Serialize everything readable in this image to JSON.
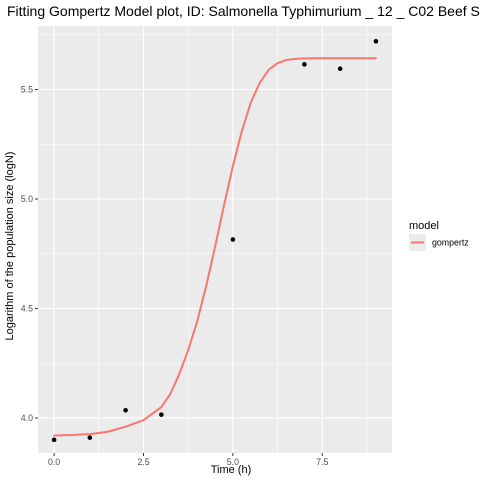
{
  "chart_data": {
    "type": "scatter",
    "title": "Fitting Gompertz Model plot, ID: Salmonella Typhimurium _ 12 _ C02 Beef S",
    "xlabel": "Time (h)",
    "ylabel": "Logarithm of the population size (logN)",
    "xlim": [
      -0.45,
      9.45
    ],
    "ylim": [
      3.84,
      5.79
    ],
    "x_ticks": [
      0,
      2.5,
      5,
      7.5
    ],
    "x_tick_labels": [
      "0.0",
      "2.5",
      "5.0",
      "7.5"
    ],
    "y_ticks": [
      4.0,
      4.5,
      5.0,
      5.5
    ],
    "y_tick_labels": [
      "4.0",
      "4.5",
      "5.0",
      "5.5"
    ],
    "grid": true,
    "background": "#ebebeb",
    "legend": {
      "title": "model",
      "placement": "right",
      "entries": [
        {
          "name": "gompertz",
          "color": "#f8766d"
        }
      ]
    },
    "points": {
      "x": [
        0,
        1,
        2,
        3,
        5,
        7,
        8,
        9
      ],
      "y": [
        3.9,
        3.91,
        4.035,
        4.015,
        4.815,
        5.615,
        5.595,
        5.72
      ],
      "color": "#000000"
    },
    "series": [
      {
        "name": "gompertz",
        "color": "#f8766d",
        "x": [
          0,
          0.5,
          1,
          1.5,
          2,
          2.5,
          3,
          3.25,
          3.5,
          3.75,
          4,
          4.25,
          4.5,
          4.75,
          5,
          5.25,
          5.5,
          5.75,
          6,
          6.25,
          6.5,
          6.75,
          7,
          7.5,
          8,
          8.5,
          9
        ],
        "y": [
          3.92,
          3.922,
          3.926,
          3.937,
          3.96,
          3.99,
          4.05,
          4.11,
          4.2,
          4.31,
          4.44,
          4.6,
          4.78,
          4.97,
          5.15,
          5.31,
          5.44,
          5.53,
          5.59,
          5.62,
          5.635,
          5.64,
          5.642,
          5.643,
          5.643,
          5.643,
          5.643
        ]
      }
    ]
  }
}
